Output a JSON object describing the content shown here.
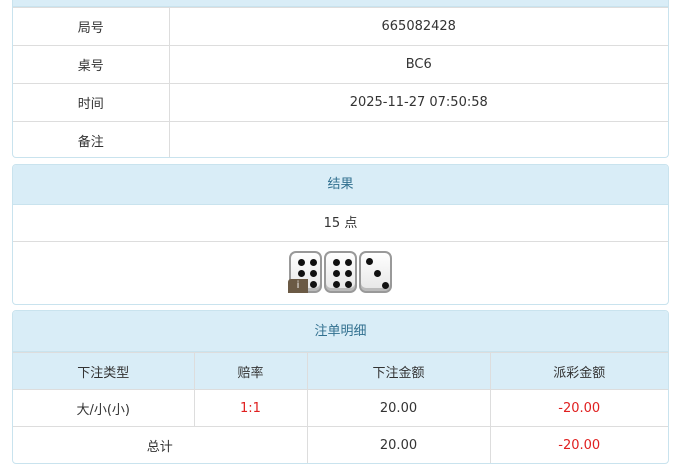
{
  "info": {
    "rows": [
      {
        "label": "局号",
        "value": "665082428"
      },
      {
        "label": "桌号",
        "value": "BC6"
      },
      {
        "label": "时间",
        "value": "2025-11-27 07:50:58"
      },
      {
        "label": "备注",
        "value": ""
      }
    ]
  },
  "result": {
    "title": "结果",
    "points": "15 点",
    "dice": [
      6,
      6,
      3
    ],
    "info_badge": "i"
  },
  "bets": {
    "title": "注单明细",
    "headers": [
      "下注类型",
      "赔率",
      "下注金额",
      "派彩金额"
    ],
    "rows": [
      {
        "type": "大/小(小)",
        "odds": "1:1",
        "amount": "20.00",
        "payout": "-20.00"
      }
    ],
    "total": {
      "label": "总计",
      "amount": "20.00",
      "payout": "-20.00"
    }
  },
  "colors": {
    "header_bg": "#d9edf7",
    "negative": "#e02020"
  }
}
